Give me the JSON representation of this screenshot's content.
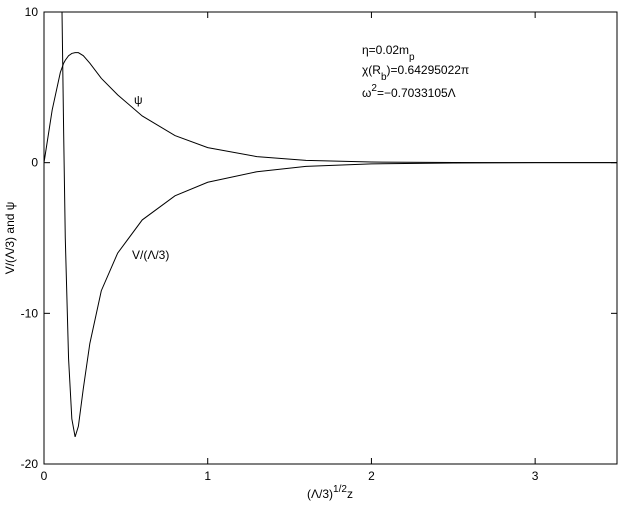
{
  "chart_data": {
    "type": "line",
    "x_label": [
      "(Λ/3)",
      "1/2",
      "z"
    ],
    "y_label": "V/(Λ/3) and ψ",
    "x": [
      0,
      0.05,
      0.1,
      0.11,
      0.12,
      0.13,
      0.15,
      0.17,
      0.19,
      0.21,
      0.24,
      0.28,
      0.35,
      0.45,
      0.6,
      0.8,
      1.0,
      1.3,
      1.6,
      2.0,
      2.5,
      3.0,
      3.5
    ],
    "series": [
      {
        "name": "ψ",
        "color": "#000000",
        "values": [
          0,
          3.5,
          6.0,
          6.3,
          6.6,
          6.8,
          7.1,
          7.25,
          7.3,
          7.3,
          7.1,
          6.6,
          5.6,
          4.5,
          3.1,
          1.8,
          1.0,
          0.4,
          0.15,
          0.04,
          0.01,
          0,
          0
        ]
      },
      {
        "name": "V/(Λ/3)",
        "color": "#000000",
        "values": [
          null,
          null,
          null,
          10,
          2,
          -5,
          -13,
          -17,
          -18.2,
          -17.5,
          -15,
          -12,
          -8.5,
          -6,
          -3.8,
          -2.2,
          -1.3,
          -0.6,
          -0.25,
          -0.08,
          -0.02,
          0,
          0
        ]
      }
    ],
    "annotations": [
      [
        "η=0.02m",
        "p"
      ],
      [
        "χ(R",
        "b",
        ")=0.64295022π"
      ],
      [
        "ω",
        "2",
        "=−0.7033105Λ"
      ]
    ],
    "xlim": [
      0,
      3.5
    ],
    "ylim": [
      -20,
      10
    ],
    "xticks": [
      0,
      1,
      2,
      3
    ],
    "yticks": [
      -20,
      -10,
      0,
      10
    ]
  }
}
